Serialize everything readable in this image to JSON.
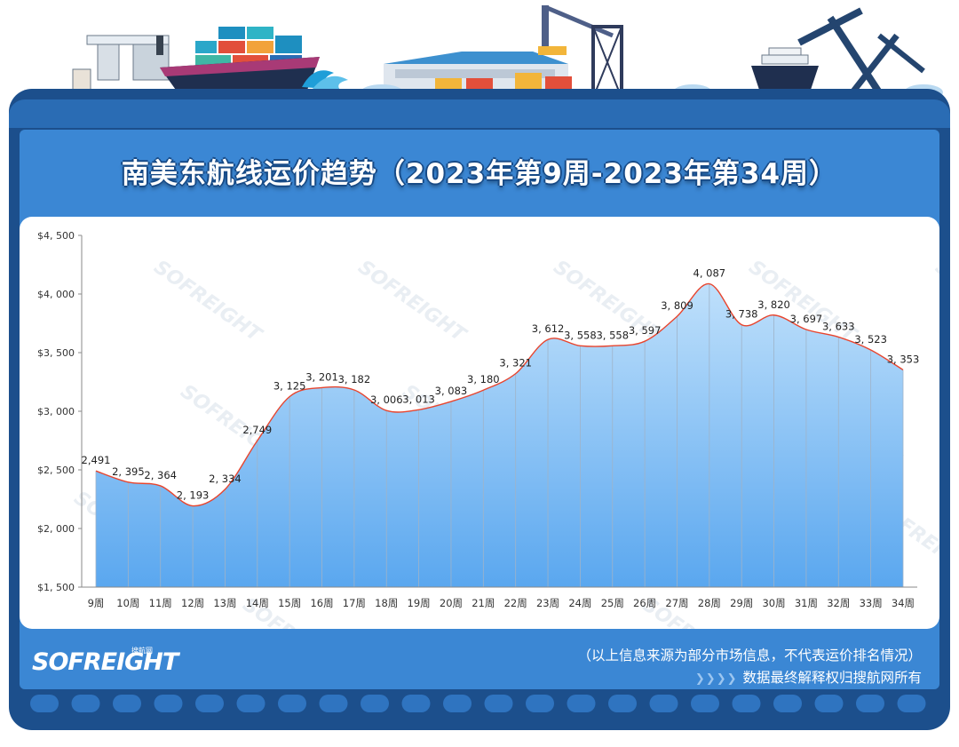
{
  "header": {
    "title": "南美东航线运价趋势（2023年第9周-2023年第34周）"
  },
  "chart_data": {
    "type": "area",
    "categories": [
      "9周",
      "10周",
      "11周",
      "12周",
      "13周",
      "14周",
      "15周",
      "16周",
      "17周",
      "18周",
      "19周",
      "20周",
      "21周",
      "22周",
      "23周",
      "24周",
      "25周",
      "26周",
      "27周",
      "28周",
      "29周",
      "30周",
      "31周",
      "32周",
      "33周",
      "34周"
    ],
    "values": [
      2491,
      2395,
      2364,
      2193,
      2334,
      2749,
      3125,
      3201,
      3182,
      3006,
      3013,
      3083,
      3180,
      3321,
      3612,
      3558,
      3558,
      3597,
      3809,
      4087,
      3738,
      3820,
      3697,
      3633,
      3523,
      3353
    ],
    "data_labels": [
      "2,491",
      "2, 395",
      "2, 364",
      "2, 193",
      "2, 334",
      "2,749",
      "3, 125",
      "3, 201",
      "3, 182",
      "3, 006",
      "3, 013",
      "3, 083",
      "3, 180",
      "3, 321",
      "3, 612",
      "3, 558",
      "3, 558",
      "3, 597",
      "3, 809",
      "4, 087",
      "3, 738",
      "3, 820",
      "3, 697",
      "3, 633",
      "3, 523",
      "3, 353"
    ],
    "y_ticks": [
      1500,
      2000,
      2500,
      3000,
      3500,
      4000,
      4500
    ],
    "y_tick_labels": [
      "$1, 500",
      "$2, 000",
      "$2, 500",
      "$3, 000",
      "$3, 500",
      "$4, 000",
      "$4, 500"
    ],
    "ylim": [
      1500,
      4500
    ],
    "title": "南美东航线运价趋势（2023年第9周-2023年第34周）",
    "xlabel": "",
    "ylabel": "",
    "grid": false,
    "line_color": "#e8452e",
    "fill_top_color": "#bfe0fb",
    "fill_bottom_color": "#5aa7ef"
  },
  "watermark": "SOFREIGHT",
  "footer": {
    "logo": "SOFREIGHT",
    "logo_sub": "搜航网",
    "note_source": "（以上信息来源为部分市场信息，不代表运价排名情况）",
    "arrows": "❯❯❯❯",
    "note_rights": "数据最终解释权归搜航网所有"
  },
  "colors": {
    "frame": "#1c4f8c",
    "inner": "#3b87d4"
  }
}
